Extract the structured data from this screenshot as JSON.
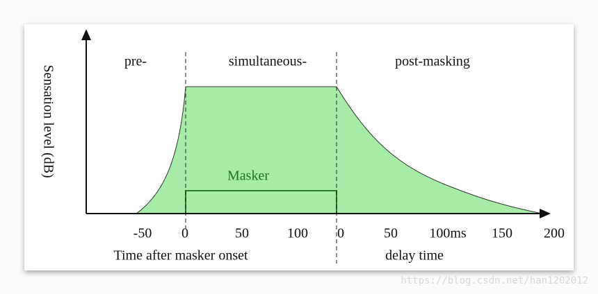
{
  "diagram": {
    "regions": [
      "pre-",
      "simultaneous-",
      "post-masking"
    ],
    "y_axis_label": "Sensation level (dB)",
    "masker_label": "Masker",
    "left_tick_labels": [
      "-50",
      "0",
      "50",
      "100"
    ],
    "right_tick_labels": [
      "0",
      "50",
      "100ms",
      "150",
      "200"
    ],
    "left_axis_label": "Time after masker onset",
    "right_axis_label": "delay time"
  },
  "watermark": "https://blog.csdn.net/han1202012"
}
